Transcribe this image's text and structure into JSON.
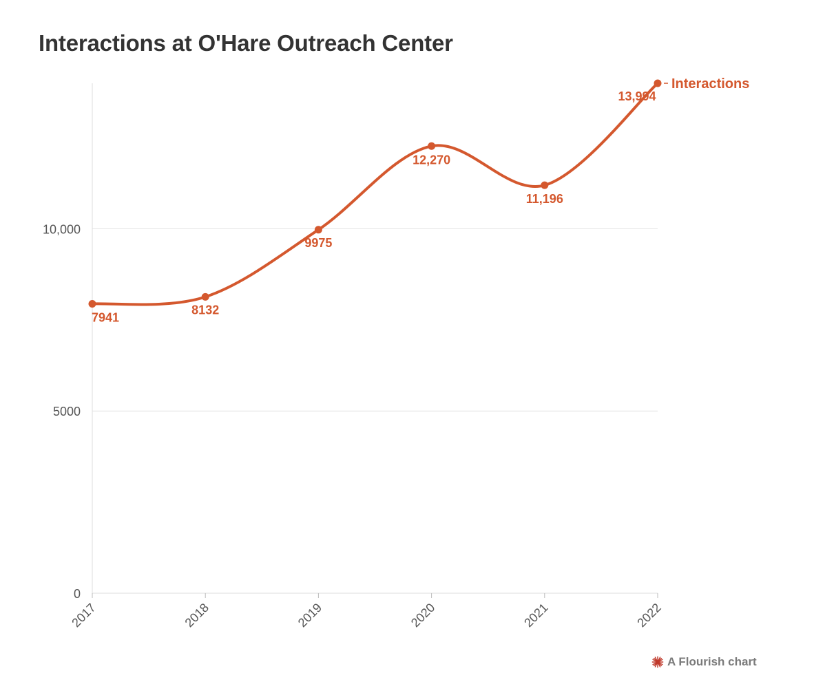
{
  "title": "Interactions at O'Hare Outreach Center",
  "credit": {
    "text": "A Flourish chart",
    "icon": "flourish-logo-icon"
  },
  "chart_data": {
    "type": "line",
    "title": "Interactions at O'Hare Outreach Center",
    "x": [
      "2017",
      "2018",
      "2019",
      "2020",
      "2021",
      "2022"
    ],
    "series": [
      {
        "name": "Interactions",
        "values": [
          7941,
          8132,
          9975,
          12270,
          11196,
          13994
        ],
        "labels": [
          "7941",
          "8132",
          "9975",
          "12,270",
          "11,196",
          "13,994"
        ],
        "color": "#d4582e"
      }
    ],
    "y_ticks": [
      0,
      5000,
      10000
    ],
    "y_tick_labels": [
      "0",
      "5000",
      "10,000"
    ],
    "ylim": [
      0,
      13994
    ],
    "curve": "smooth",
    "grid": "horizontal",
    "legend": "end-of-line label"
  }
}
